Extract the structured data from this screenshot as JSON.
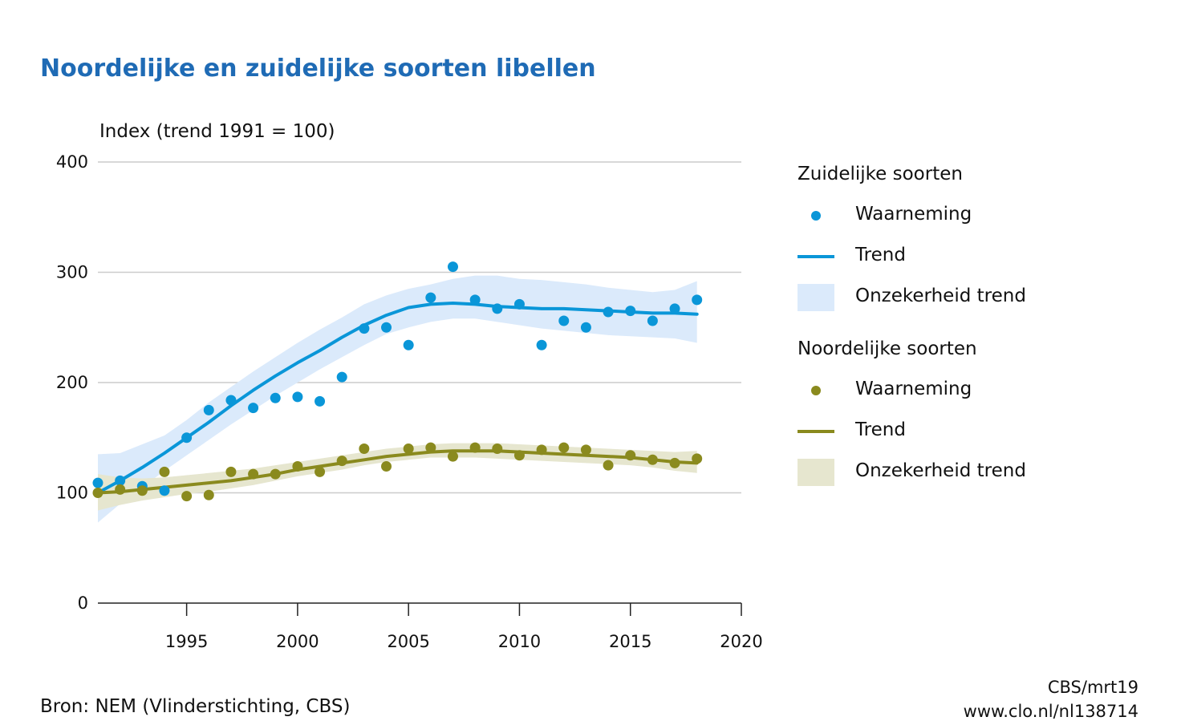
{
  "header": {
    "title": "Noordelijke en zuidelijke soorten libellen",
    "y_axis_label": "Index (trend 1991 = 100)"
  },
  "legend": {
    "south_heading": "Zuidelijke soorten",
    "north_heading": "Noordelijke soorten",
    "observation_label": "Waarneming",
    "trend_label": "Trend",
    "uncertainty_label": "Onzekerheid trend"
  },
  "footer": {
    "source": "Bron: NEM (Vlinderstichting, CBS)",
    "credit_1": "CBS/mrt19",
    "credit_2": "www.clo.nl/nl138714"
  },
  "colors": {
    "south": "#0a96d8",
    "south_band": "#dbeafb",
    "north": "#8a8a1e",
    "north_band": "#e6e6cf",
    "title": "#1f6bb5",
    "grid": "#cccccc"
  },
  "chart_data": {
    "type": "line",
    "title": "Noordelijke en zuidelijke soorten libellen",
    "ylabel": "Index (trend 1991 = 100)",
    "xlabel": "",
    "xlim": [
      1991,
      2020
    ],
    "ylim": [
      0,
      400
    ],
    "x_ticks": [
      1995,
      2000,
      2005,
      2010,
      2015,
      2020
    ],
    "y_ticks": [
      0,
      100,
      200,
      300,
      400
    ],
    "grid": "horizontal",
    "legend_position": "right",
    "x": [
      1991,
      1992,
      1993,
      1994,
      1995,
      1996,
      1997,
      1998,
      1999,
      2000,
      2001,
      2002,
      2003,
      2004,
      2005,
      2006,
      2007,
      2008,
      2009,
      2010,
      2011,
      2012,
      2013,
      2014,
      2015,
      2016,
      2017,
      2018
    ],
    "series": [
      {
        "name": "Zuidelijke soorten",
        "observations": [
          109,
          111,
          106,
          102,
          150,
          175,
          184,
          177,
          186,
          187,
          183,
          205,
          249,
          250,
          234,
          277,
          305,
          275,
          267,
          271,
          234,
          256,
          250,
          264,
          265,
          256,
          267,
          275
        ],
        "trend": [
          100,
          111,
          123,
          136,
          150,
          164,
          179,
          193,
          206,
          218,
          229,
          241,
          252,
          261,
          268,
          271,
          272,
          271,
          269,
          268,
          267,
          267,
          266,
          265,
          264,
          263,
          263,
          262
        ],
        "trend_lower": [
          73,
          90,
          105,
          120,
          134,
          148,
          162,
          175,
          188,
          200,
          212,
          223,
          234,
          244,
          250,
          255,
          258,
          258,
          255,
          252,
          249,
          247,
          245,
          243,
          242,
          241,
          240,
          236
        ],
        "trend_upper": [
          135,
          136,
          144,
          152,
          166,
          182,
          196,
          210,
          223,
          236,
          248,
          259,
          271,
          279,
          285,
          289,
          294,
          297,
          297,
          294,
          293,
          291,
          289,
          286,
          284,
          282,
          284,
          292
        ]
      },
      {
        "name": "Noordelijke soorten",
        "observations": [
          100,
          103,
          102,
          119,
          97,
          98,
          119,
          117,
          117,
          124,
          119,
          129,
          140,
          124,
          140,
          141,
          133,
          141,
          140,
          134,
          139,
          141,
          139,
          125,
          134,
          130,
          127,
          131
        ],
        "trend": [
          100,
          101,
          103,
          105,
          107,
          109,
          111,
          114,
          117,
          121,
          124,
          127,
          130,
          133,
          135,
          137,
          138,
          138,
          138,
          137,
          136,
          135,
          134,
          133,
          132,
          130,
          128,
          127
        ],
        "trend_lower": [
          84,
          89,
          93,
          96,
          99,
          101,
          104,
          107,
          111,
          115,
          118,
          121,
          125,
          128,
          130,
          132,
          132,
          132,
          131,
          130,
          129,
          128,
          127,
          126,
          125,
          123,
          120,
          118
        ],
        "trend_upper": [
          117,
          114,
          113,
          114,
          116,
          118,
          120,
          122,
          125,
          128,
          131,
          134,
          137,
          140,
          142,
          144,
          145,
          145,
          145,
          144,
          143,
          142,
          141,
          140,
          139,
          138,
          137,
          138
        ]
      }
    ]
  }
}
